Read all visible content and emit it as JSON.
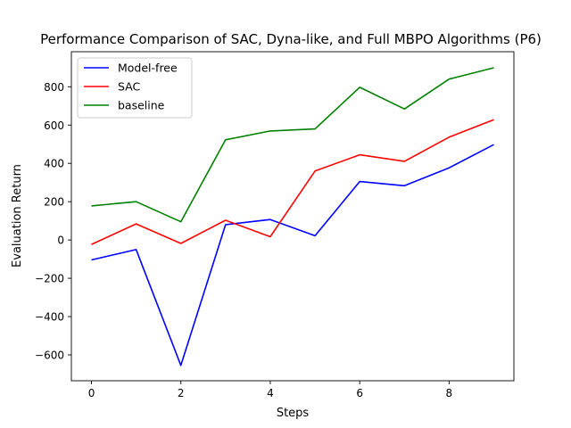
{
  "chart_data": {
    "type": "line",
    "title": "Performance Comparison of SAC, Dyna-like, and Full MBPO Algorithms (P6)",
    "xlabel": "Steps",
    "ylabel": "Evaluation Return",
    "x": [
      0,
      1,
      2,
      3,
      4,
      5,
      6,
      7,
      8,
      9
    ],
    "xlim": [
      -0.45,
      9.45
    ],
    "ylim": [
      -735,
      983
    ],
    "xticks": [
      0,
      2,
      4,
      6,
      8
    ],
    "yticks": [
      -600,
      -400,
      -200,
      0,
      200,
      400,
      600,
      800
    ],
    "xtick_labels": [
      "0",
      "2",
      "4",
      "6",
      "8"
    ],
    "ytick_labels": [
      "−600",
      "−400",
      "−200",
      "0",
      "200",
      "400",
      "600",
      "800"
    ],
    "grid": false,
    "legend_position": "top-left",
    "series": [
      {
        "name": "Model-free",
        "color": "#0000ff",
        "values": [
          -104,
          -50,
          -655,
          80,
          107,
          22,
          305,
          283,
          377,
          498
        ]
      },
      {
        "name": "SAC",
        "color": "#ff0000",
        "values": [
          -23,
          84,
          -18,
          103,
          17,
          360,
          445,
          411,
          537,
          628
        ]
      },
      {
        "name": "baseline",
        "color": "#008000",
        "values": [
          178,
          200,
          95,
          523,
          569,
          580,
          797,
          684,
          840,
          899
        ]
      }
    ]
  }
}
